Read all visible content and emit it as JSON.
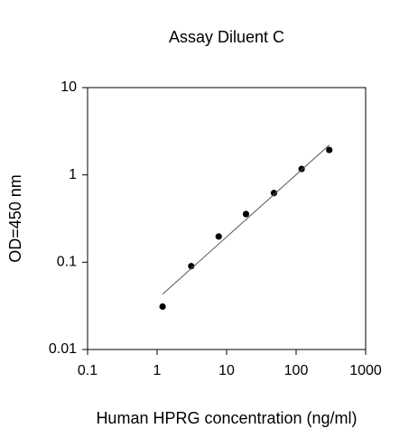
{
  "chart_data": {
    "type": "scatter",
    "title": "Assay Diluent C",
    "xlabel": "Human HPRG concentration (ng/ml)",
    "ylabel": "OD=450 nm",
    "xscale": "log",
    "yscale": "log",
    "xlim": [
      0.1,
      1000
    ],
    "ylim": [
      0.01,
      10
    ],
    "xticks": [
      0.1,
      1,
      10,
      100,
      1000
    ],
    "yticks": [
      0.01,
      0.1,
      1,
      10
    ],
    "series": [
      {
        "type": "scatter",
        "color": "#000000",
        "x": [
          1.2,
          3.1,
          7.7,
          19,
          48,
          120,
          300
        ],
        "values": [
          0.031,
          0.09,
          0.197,
          0.356,
          0.62,
          1.17,
          1.93
        ]
      },
      {
        "type": "line",
        "color": "#555555",
        "x": [
          1.2,
          300
        ],
        "values": [
          0.043,
          2.2
        ]
      }
    ]
  }
}
